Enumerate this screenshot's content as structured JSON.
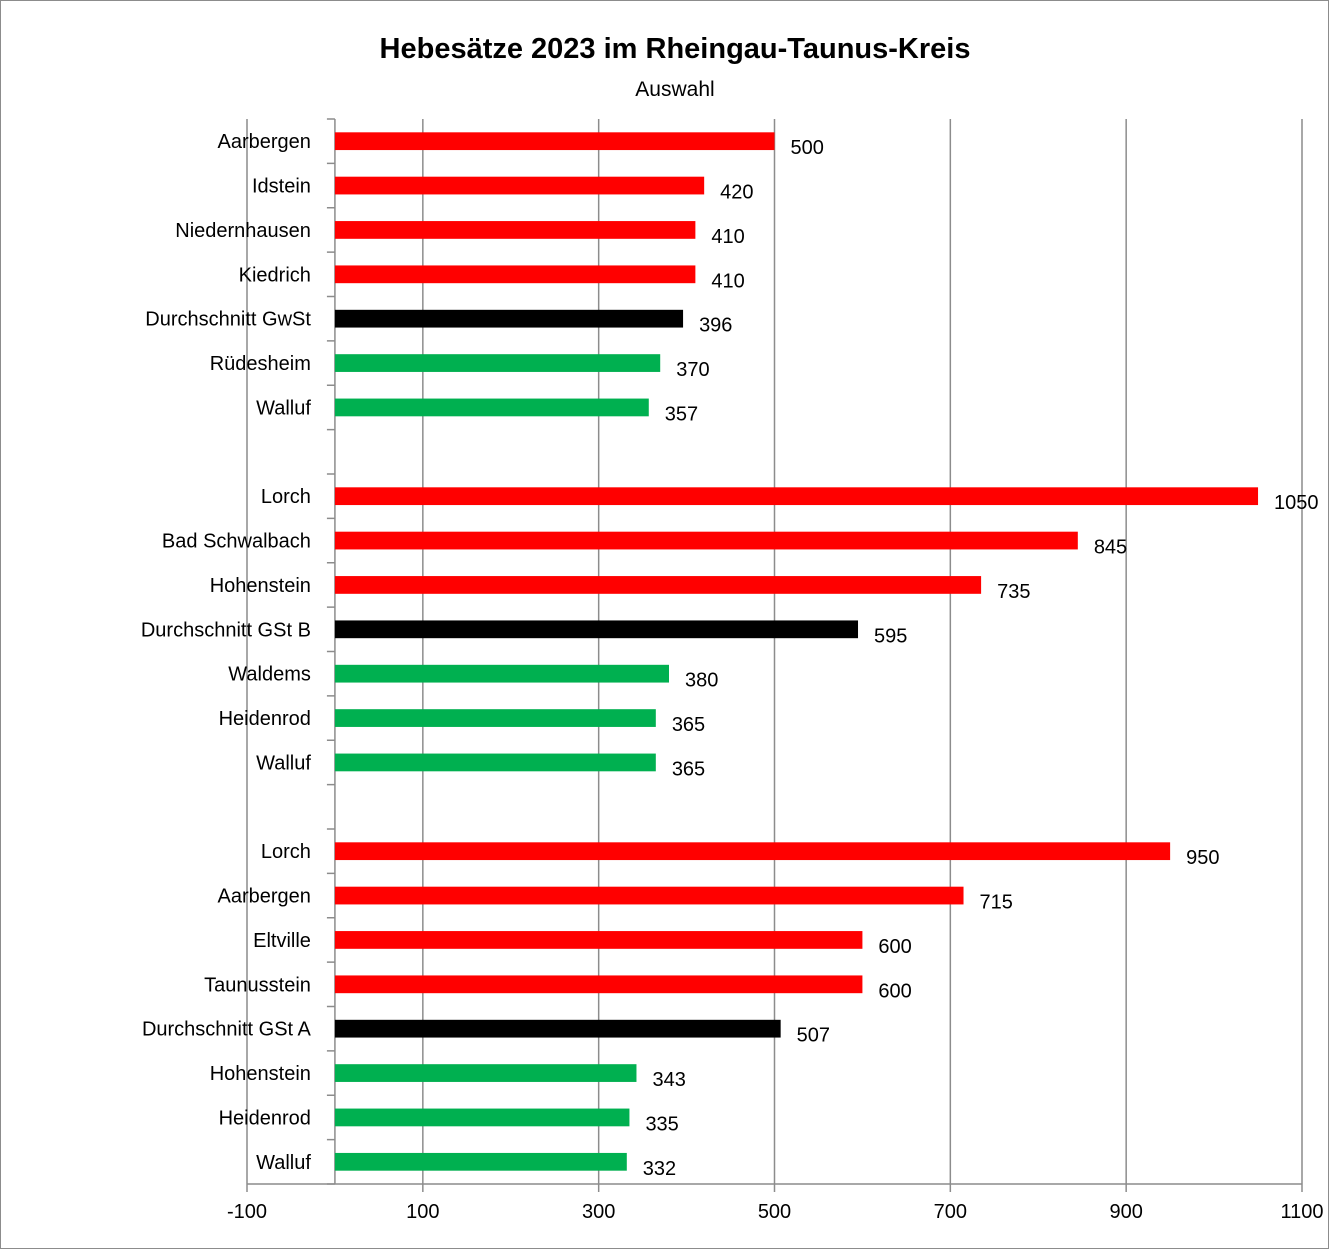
{
  "chart_data": {
    "type": "bar",
    "orientation": "horizontal",
    "title": "Hebesätze 2023 im Rheingau-Taunus-Kreis",
    "subtitle": "Auswahl",
    "xlim": [
      -100,
      1100
    ],
    "xticks": [
      -100,
      100,
      300,
      500,
      700,
      900,
      1100
    ],
    "grid": true,
    "colors": {
      "high": "#ff0000",
      "average": "#000000",
      "low": "#00b050"
    },
    "categories": [
      "Aarbergen",
      "Idstein",
      "Niedernhausen",
      "Kiedrich",
      "Durchschnitt GwSt",
      "Rüdesheim",
      "Walluf",
      "",
      "Lorch",
      "Bad Schwalbach",
      "Hohenstein",
      "Durchschnitt GSt B",
      "Waldems",
      "Heidenrod",
      "Walluf",
      "",
      "Lorch",
      "Aarbergen",
      "Eltville ",
      "Taunusstein",
      "Durchschnitt GSt A",
      "Hohenstein",
      "Heidenrod",
      "Walluf"
    ],
    "values": [
      500,
      420,
      410,
      410,
      396,
      370,
      357,
      null,
      1050,
      845,
      735,
      595,
      380,
      365,
      365,
      null,
      950,
      715,
      600,
      600,
      507,
      343,
      335,
      332
    ],
    "bar_colors": [
      "high",
      "high",
      "high",
      "high",
      "average",
      "low",
      "low",
      null,
      "high",
      "high",
      "high",
      "average",
      "low",
      "low",
      "low",
      null,
      "high",
      "high",
      "high",
      "high",
      "average",
      "low",
      "low",
      "low"
    ]
  }
}
